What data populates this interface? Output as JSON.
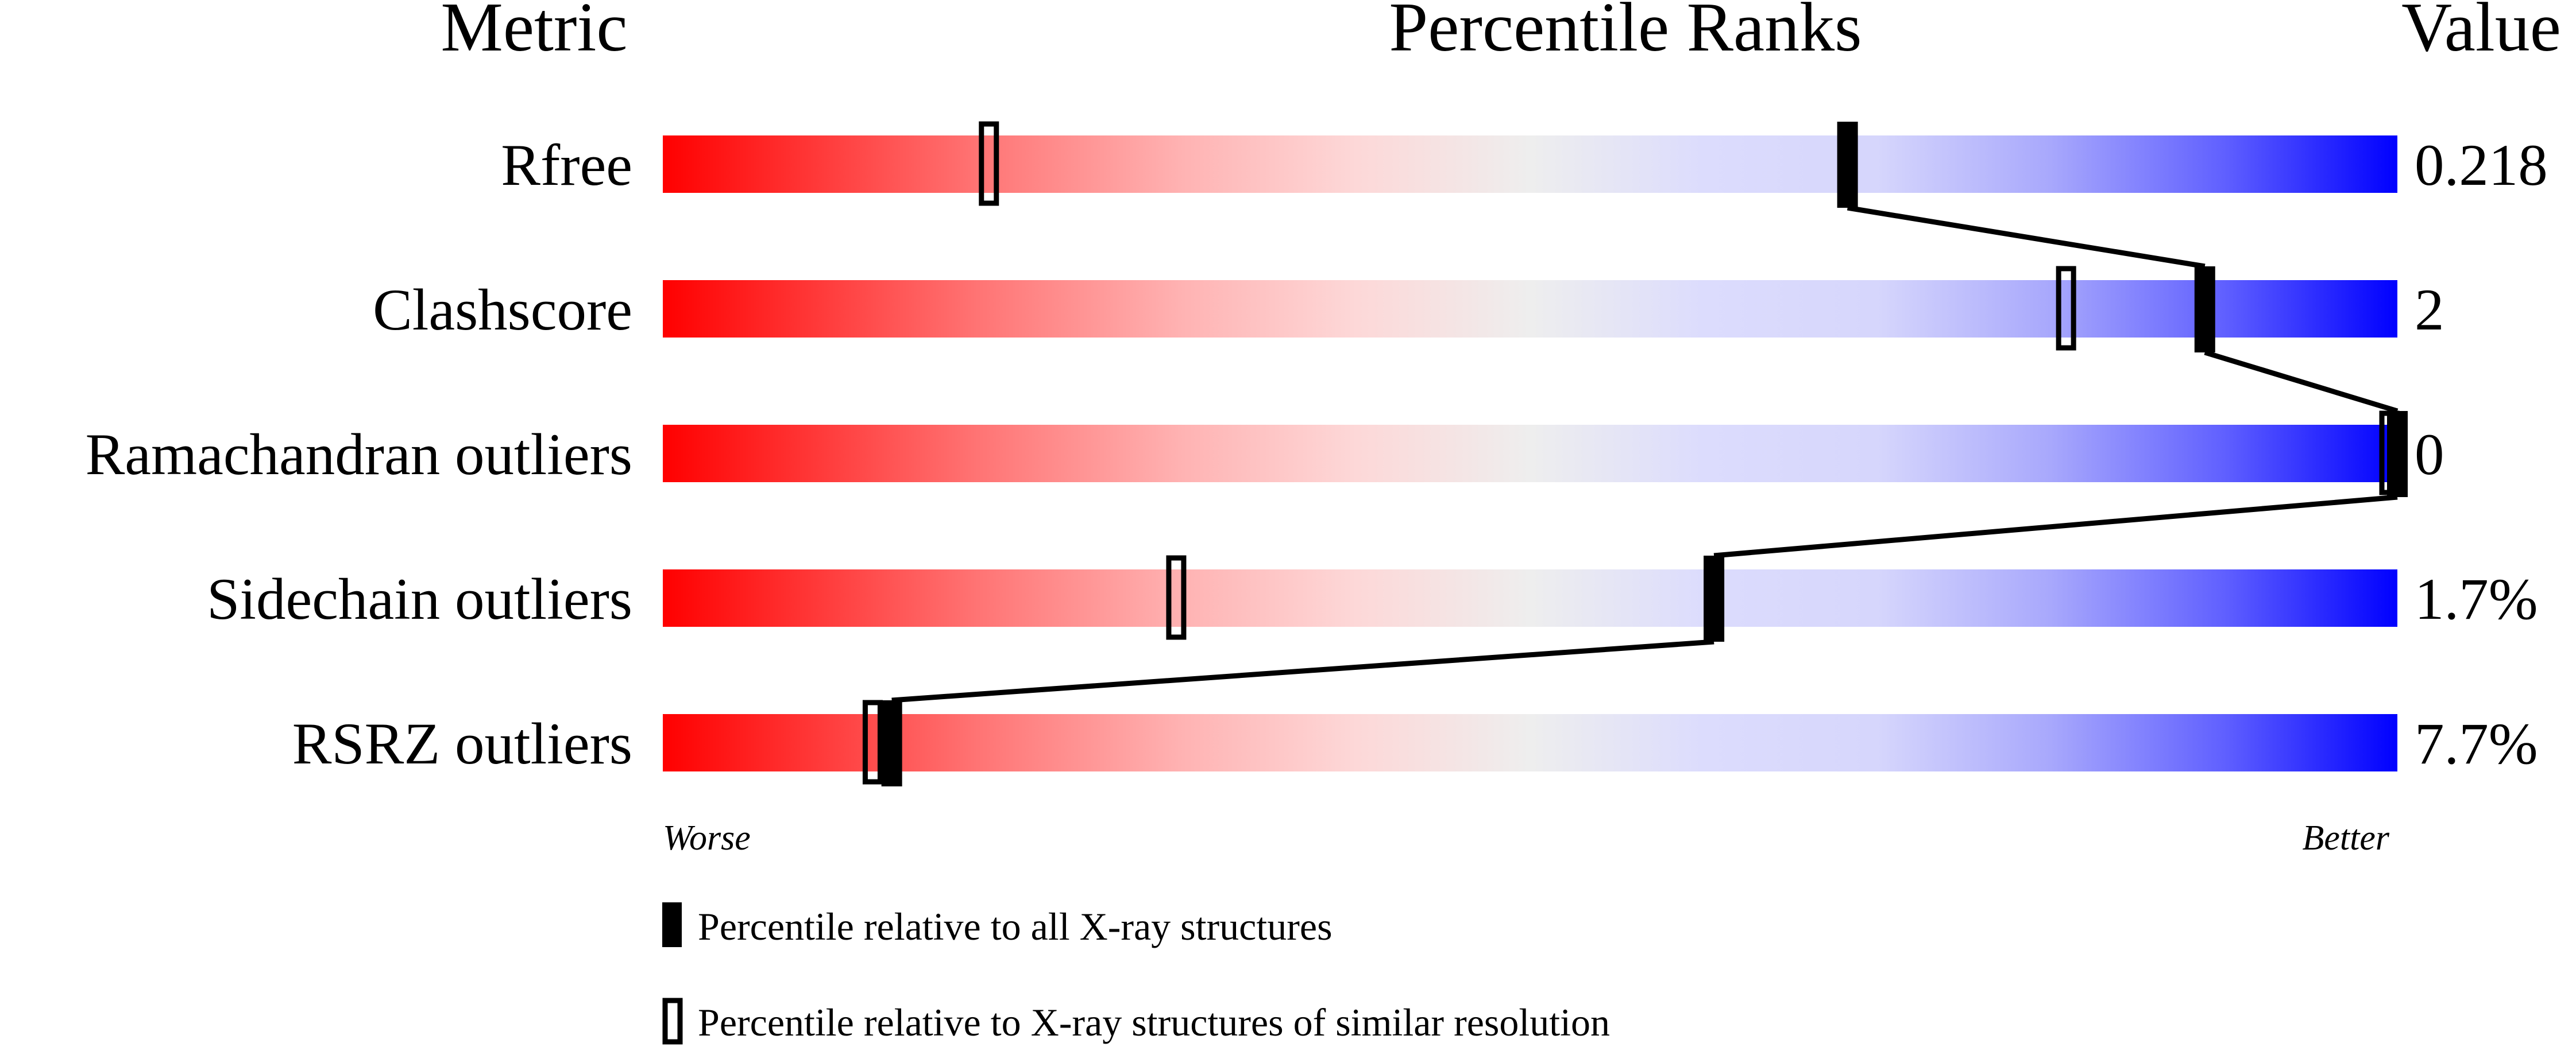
{
  "chart_data": {
    "type": "bar",
    "headers": {
      "metric": "Metric",
      "ranks": "Percentile Ranks",
      "value": "Value"
    },
    "xlim": [
      0,
      100
    ],
    "axis_labels": {
      "left": "Worse",
      "right": "Better"
    },
    "colors": {
      "worse": "#ff0000",
      "middle": "#eeeeee",
      "better": "#0000ff"
    },
    "rows": [
      {
        "metric": "Rfree",
        "value": "0.218",
        "percentile_all": 68.3,
        "percentile_similar": 18.8
      },
      {
        "metric": "Clashscore",
        "value": "2",
        "percentile_all": 88.9,
        "percentile_similar": 80.9
      },
      {
        "metric": "Ramachandran outliers",
        "value": "0",
        "percentile_all": 100,
        "percentile_similar": 100
      },
      {
        "metric": "Sidechain outliers",
        "value": "1.7%",
        "percentile_all": 60.6,
        "percentile_similar": 29.6
      },
      {
        "metric": "RSRZ outliers",
        "value": "7.7%",
        "percentile_all": 13.2,
        "percentile_similar": 12.1
      }
    ],
    "legend": [
      {
        "marker": "filled",
        "label": "Percentile relative to all X-ray structures"
      },
      {
        "marker": "open",
        "label": "Percentile relative to X-ray structures of similar resolution"
      }
    ]
  }
}
